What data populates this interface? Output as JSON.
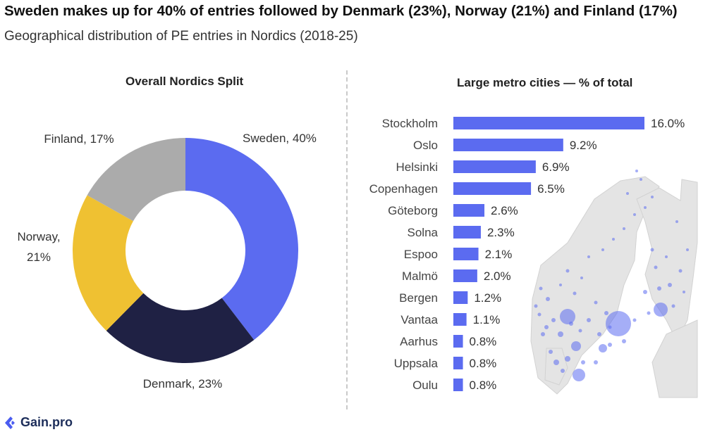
{
  "title": "Sweden makes up for 40% of entries followed by Denmark (23%), Norway (21%) and Finland (17%)",
  "subtitle": "Geographical distribution of PE entries in Nordics (2018-25)",
  "brand": {
    "name": "Gain.pro"
  },
  "colors": {
    "sweden": "#5b6bf0",
    "denmark": "#1f2144",
    "norway": "#efc132",
    "finland": "#ababab",
    "bar": "#5b6bf0",
    "map_land": "#e4e4e4",
    "map_dots": "#5b6bf0"
  },
  "chart_data": [
    {
      "type": "pie",
      "title": "Overall Nordics Split",
      "donut": true,
      "start": "12 o'clock, clockwise",
      "slices": [
        {
          "label_line1": "Sweden, 40%",
          "label_line2": "",
          "value": 40,
          "color_key": "sweden"
        },
        {
          "label_line1": "Denmark, 23%",
          "label_line2": "",
          "value": 23,
          "color_key": "denmark"
        },
        {
          "label_line1": "Norway,",
          "label_line2": "21%",
          "value": 21,
          "color_key": "norway"
        },
        {
          "label_line1": "Finland, 17%",
          "label_line2": "",
          "value": 17,
          "color_key": "finland"
        }
      ]
    },
    {
      "type": "bar",
      "orientation": "horizontal",
      "title": "Large metro cities — % of total",
      "categories": [
        "Stockholm",
        "Oslo",
        "Helsinki",
        "Copenhagen",
        "Göteborg",
        "Solna",
        "Espoo",
        "Malmö",
        "Bergen",
        "Vantaa",
        "Aarhus",
        "Uppsala",
        "Oulu"
      ],
      "values": [
        16.0,
        9.2,
        6.9,
        6.5,
        2.6,
        2.3,
        2.1,
        2.0,
        1.2,
        1.1,
        0.8,
        0.8,
        0.8
      ],
      "value_labels": [
        "16.0%",
        "9.2%",
        "6.9%",
        "6.5%",
        "2.6%",
        "2.3%",
        "2.1%",
        "2.0%",
        "1.2%",
        "1.1%",
        "0.8%",
        "0.8%",
        "0.8%"
      ],
      "xlim": [
        0,
        16.0
      ],
      "grid": false,
      "background_map": "Nordic region map with blue bubbles at entry locations"
    }
  ]
}
